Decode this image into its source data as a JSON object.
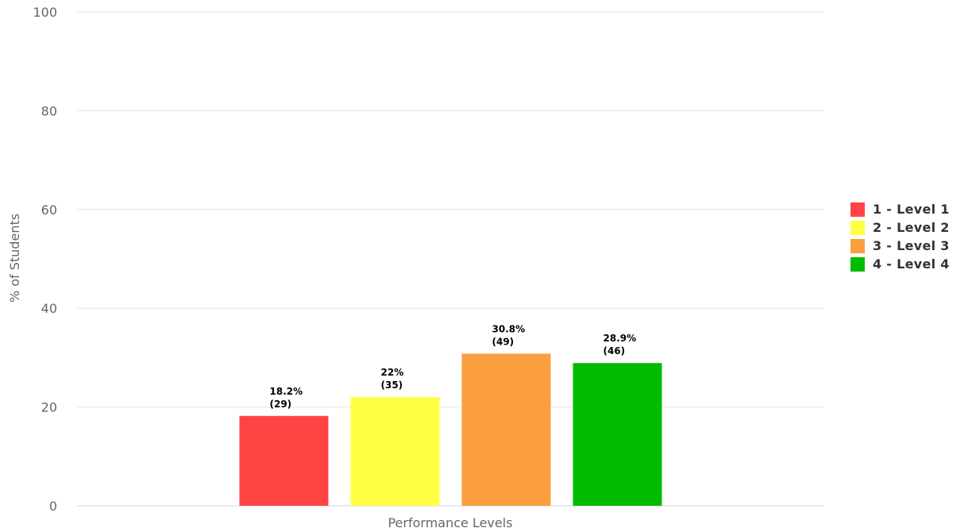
{
  "chart_data": {
    "type": "bar",
    "xlabel": "Performance Levels",
    "ylabel": "% of Students",
    "ylim": [
      0,
      100
    ],
    "yticks": [
      "0",
      "20",
      "40",
      "60",
      "80",
      "100"
    ],
    "grid": true,
    "legend_position": "right",
    "series": [
      {
        "name": "1 - Level 1",
        "value": 18.2,
        "label_pct": "18.2%",
        "label_count": "(29)",
        "color": "#ff4444"
      },
      {
        "name": "2 - Level 2",
        "value": 22,
        "label_pct": "22%",
        "label_count": "(35)",
        "color": "#ffff44"
      },
      {
        "name": "3 - Level 3",
        "value": 30.8,
        "label_pct": "30.8%",
        "label_count": "(49)",
        "color": "#fb9e40"
      },
      {
        "name": "4 - Level 4",
        "value": 28.9,
        "label_pct": "28.9%",
        "label_count": "(46)",
        "color": "#00bb00"
      }
    ]
  }
}
